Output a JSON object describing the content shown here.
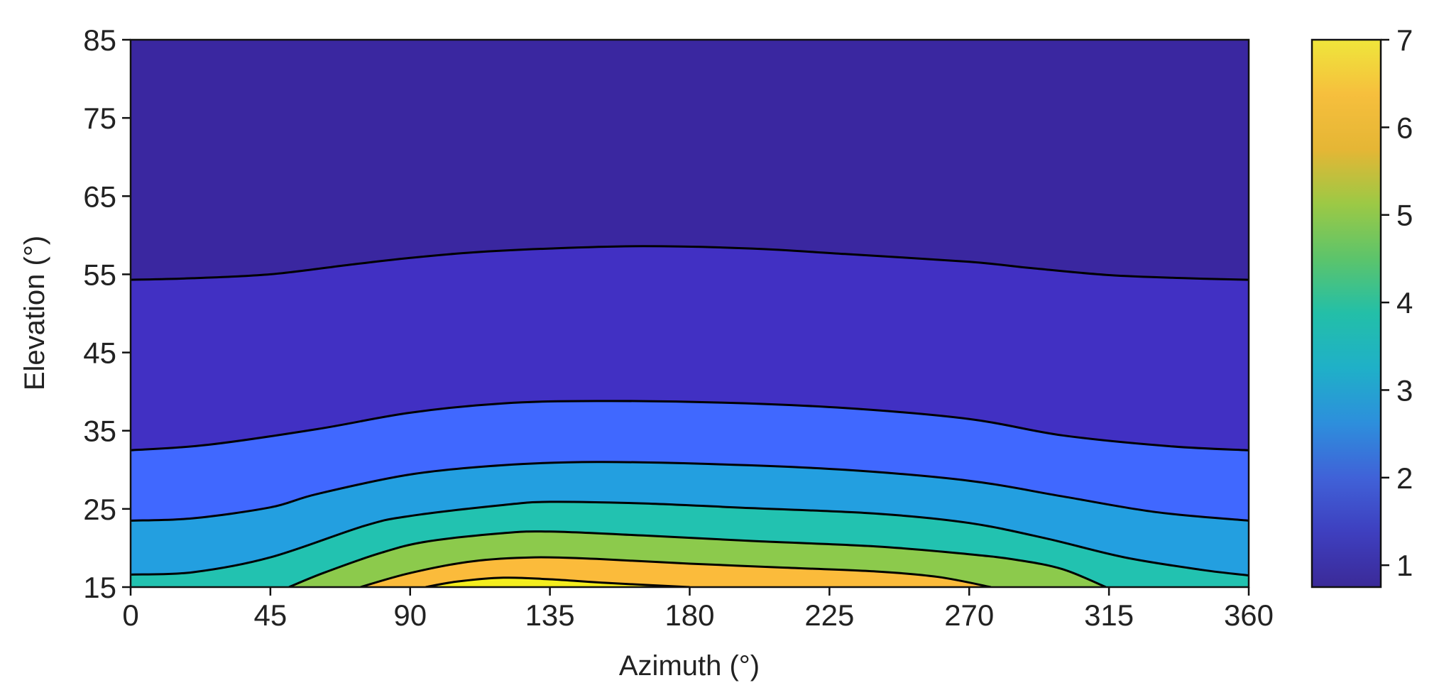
{
  "chart_data": {
    "type": "contour",
    "xlabel": "Azimuth (°)",
    "ylabel": "Elevation (°)",
    "xlim": [
      0,
      360
    ],
    "ylim": [
      15,
      85
    ],
    "xticks": [
      0,
      45,
      90,
      135,
      180,
      225,
      270,
      315,
      360
    ],
    "yticks": [
      15,
      25,
      35,
      45,
      55,
      65,
      75,
      85
    ],
    "colorbar": {
      "range": [
        0.75,
        7
      ],
      "ticks": [
        1,
        2,
        3,
        4,
        5,
        6,
        7
      ],
      "stops": [
        "#3b2a98",
        "#3e3fbf",
        "#4062d8",
        "#2d8fdc",
        "#1fb0c8",
        "#23bfa8",
        "#5cc46b",
        "#9cc945",
        "#e5b635",
        "#f6bf3d",
        "#efe63b"
      ]
    },
    "contour_levels": [
      {
        "level": 1.5,
        "fill_below": "#3a27a0",
        "fill_above": "#4130c3",
        "points": [
          [
            0,
            54.3
          ],
          [
            20,
            54.5
          ],
          [
            45,
            55.0
          ],
          [
            70,
            56.2
          ],
          [
            90,
            57.1
          ],
          [
            110,
            57.8
          ],
          [
            135,
            58.3
          ],
          [
            165,
            58.6
          ],
          [
            200,
            58.3
          ],
          [
            230,
            57.6
          ],
          [
            270,
            56.6
          ],
          [
            290,
            55.8
          ],
          [
            315,
            54.9
          ],
          [
            340,
            54.5
          ],
          [
            360,
            54.3
          ]
        ]
      },
      {
        "level": 2.5,
        "fill_above": "#4068ff",
        "points": [
          [
            0,
            32.5
          ],
          [
            25,
            33.2
          ],
          [
            60,
            35.2
          ],
          [
            90,
            37.3
          ],
          [
            120,
            38.5
          ],
          [
            150,
            38.8
          ],
          [
            190,
            38.6
          ],
          [
            230,
            37.9
          ],
          [
            270,
            36.5
          ],
          [
            300,
            34.4
          ],
          [
            335,
            33.0
          ],
          [
            360,
            32.5
          ]
        ]
      },
      {
        "level": 3.5,
        "fill_above": "#239fe0",
        "points": [
          [
            0,
            23.5
          ],
          [
            20,
            23.8
          ],
          [
            45,
            25.2
          ],
          [
            60,
            26.9
          ],
          [
            90,
            29.4
          ],
          [
            120,
            30.6
          ],
          [
            150,
            31.0
          ],
          [
            190,
            30.7
          ],
          [
            230,
            30.0
          ],
          [
            270,
            28.6
          ],
          [
            300,
            26.6
          ],
          [
            330,
            24.6
          ],
          [
            360,
            23.5
          ]
        ]
      },
      {
        "level": 4.5,
        "fill_above": "#22c2b0",
        "points": [
          [
            0,
            16.6
          ],
          [
            20,
            16.9
          ],
          [
            45,
            18.8
          ],
          [
            75,
            22.8
          ],
          [
            90,
            24.1
          ],
          [
            120,
            25.5
          ],
          [
            135,
            25.9
          ],
          [
            165,
            25.7
          ],
          [
            200,
            25.1
          ],
          [
            240,
            24.4
          ],
          [
            270,
            23.2
          ],
          [
            295,
            21.2
          ],
          [
            320,
            18.8
          ],
          [
            345,
            17.2
          ],
          [
            360,
            16.5
          ]
        ]
      },
      {
        "level": 5.5,
        "fill_above": "#8cca4c",
        "points": [
          [
            51,
            15.0
          ],
          [
            62,
            16.8
          ],
          [
            80,
            19.3
          ],
          [
            95,
            20.8
          ],
          [
            120,
            21.9
          ],
          [
            135,
            22.1
          ],
          [
            165,
            21.6
          ],
          [
            200,
            20.9
          ],
          [
            240,
            20.2
          ],
          [
            270,
            19.2
          ],
          [
            285,
            18.5
          ],
          [
            300,
            17.3
          ],
          [
            314,
            15.0
          ]
        ]
      },
      {
        "level": 6.5,
        "fill_above": "#fbbb3b",
        "points": [
          [
            74,
            15.0
          ],
          [
            90,
            16.8
          ],
          [
            110,
            18.3
          ],
          [
            130,
            18.8
          ],
          [
            150,
            18.6
          ],
          [
            180,
            18.0
          ],
          [
            210,
            17.5
          ],
          [
            240,
            17.0
          ],
          [
            260,
            16.3
          ],
          [
            277,
            15.0
          ]
        ]
      },
      {
        "level": 6.9,
        "fill_above": "#f4ee1e",
        "points": [
          [
            95,
            15.0
          ],
          [
            105,
            15.7
          ],
          [
            120,
            16.2
          ],
          [
            135,
            16.0
          ],
          [
            155,
            15.5
          ],
          [
            180,
            15.0
          ]
        ]
      }
    ]
  }
}
